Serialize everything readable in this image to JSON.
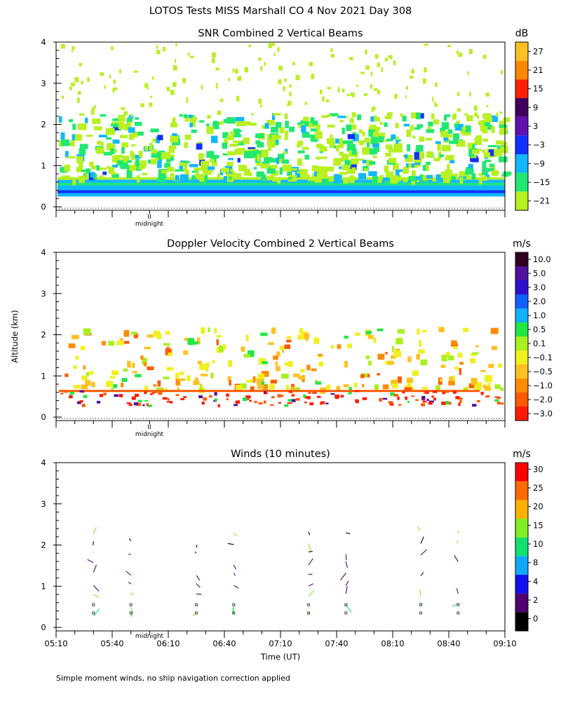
{
  "page": {
    "main_title": "LOTOS Tests MISS Marshall CO   4 Nov 2021 Day 308",
    "y_axis_label": "Altitude (km)",
    "x_axis_label": "Time (UT)",
    "footnote": "Simple moment winds, no ship navigation correction applied",
    "midnight_label": "midnight",
    "midnight_mark": "II"
  },
  "chart_data": [
    {
      "id": "snr",
      "type": "heatmap",
      "title": "SNR Combined 2 Vertical Beams",
      "ylim": [
        0,
        4
      ],
      "yticks": [
        "0",
        "1",
        "2",
        "3",
        "4"
      ],
      "colorbar": {
        "unit": "dB",
        "labels": [
          "27",
          "21",
          "15",
          "9",
          "3",
          "−3",
          "−9",
          "−15",
          "−21"
        ],
        "colors": [
          "#ffc020",
          "#ff8800",
          "#ff2000",
          "#400060",
          "#6010b0",
          "#1030ff",
          "#10b8ff",
          "#20e870",
          "#b8f020"
        ]
      }
    },
    {
      "id": "velocity",
      "type": "heatmap",
      "title": "Doppler Velocity Combined 2 Vertical Beams",
      "ylim": [
        0,
        4
      ],
      "yticks": [
        "0",
        "1",
        "2",
        "3",
        "4"
      ],
      "colorbar": {
        "unit": "m/s",
        "labels": [
          "10.0",
          "5.0",
          "3.0",
          "2.0",
          "1.0",
          "0.5",
          "0.1",
          "−0.1",
          "−0.5",
          "−1.0",
          "−2.0",
          "−3.0"
        ],
        "colors": [
          "#300020",
          "#5010a0",
          "#3010d0",
          "#1060ff",
          "#10b0ff",
          "#20e840",
          "#a8f020",
          "#f0f020",
          "#ffc020",
          "#ff8c00",
          "#ff5a00",
          "#ff1a00"
        ]
      }
    },
    {
      "id": "winds",
      "type": "scatter",
      "title": "Winds (10 minutes)",
      "ylim": [
        0,
        4
      ],
      "yticks": [
        "0",
        "1",
        "2",
        "3",
        "4"
      ],
      "xlabels": [
        "05:10",
        "05:40",
        "06:10",
        "06:40",
        "07:10",
        "07:40",
        "08:10",
        "08:40",
        "09:10"
      ],
      "profile_times": [
        "05:30",
        "05:50",
        "06:25",
        "06:45",
        "07:25",
        "07:45",
        "08:25",
        "08:45"
      ],
      "colorbar": {
        "unit": "m/s",
        "labels": [
          "30",
          "25",
          "20",
          "15",
          "10",
          "8",
          "4",
          "2",
          "0"
        ],
        "colors": [
          "#ff0000",
          "#ff6a00",
          "#ffb000",
          "#80f020",
          "#10e070",
          "#10a8ff",
          "#1010f0",
          "#500070",
          "#000000"
        ]
      }
    }
  ]
}
